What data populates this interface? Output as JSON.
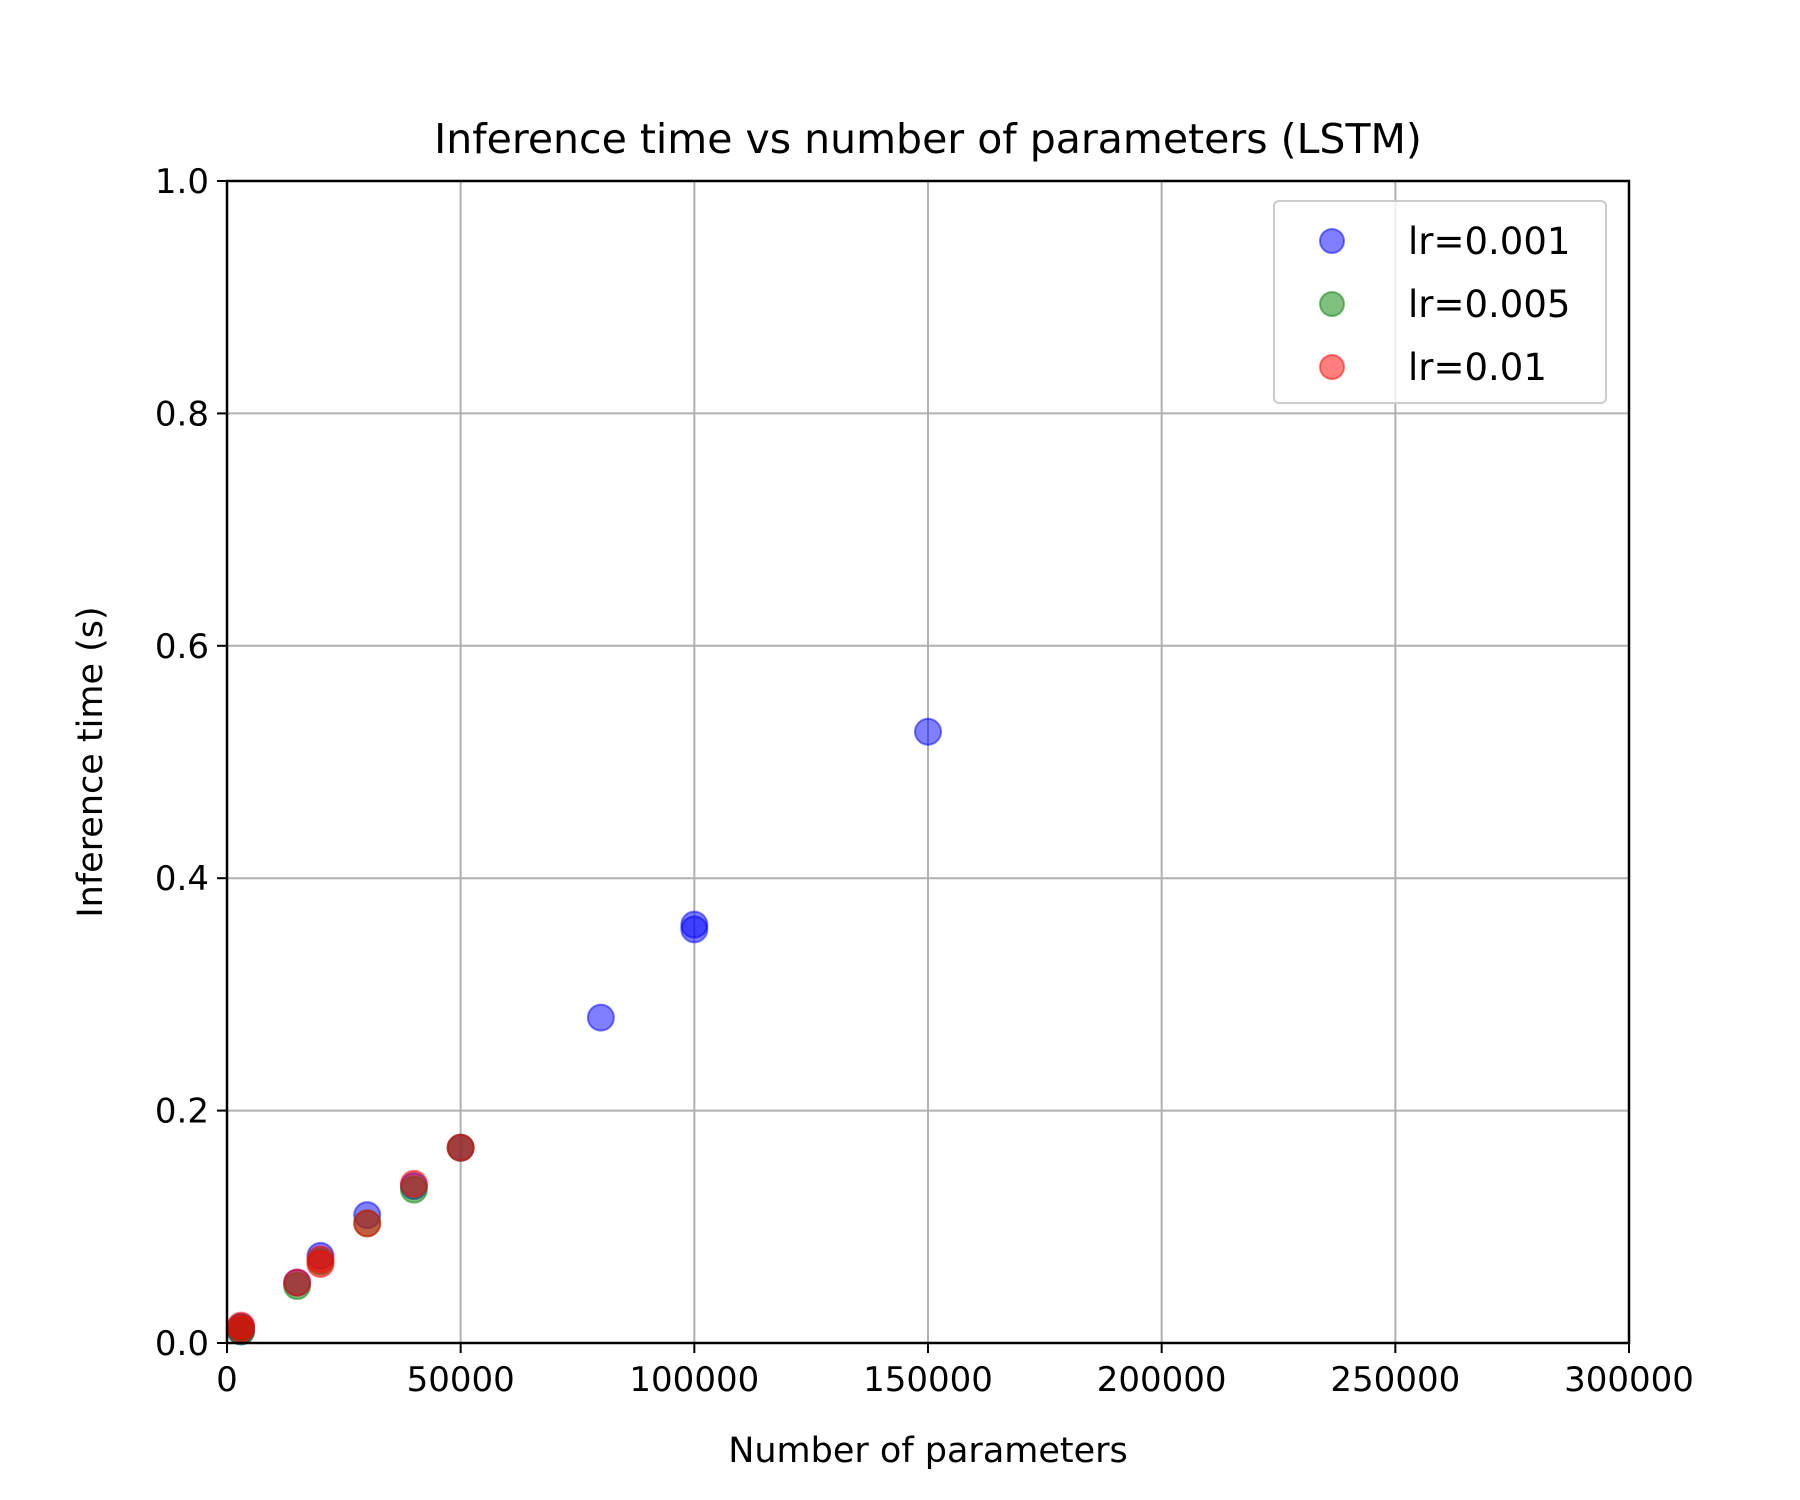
{
  "chart_data": {
    "type": "scatter",
    "title": "Inference time vs number of parameters (LSTM)",
    "xlabel": "Number of parameters",
    "ylabel": "Inference time (s)",
    "xlim": [
      0,
      300000
    ],
    "ylim": [
      0,
      1.0
    ],
    "xticks": [
      0,
      50000,
      100000,
      150000,
      200000,
      250000,
      300000
    ],
    "xtick_labels": [
      "0",
      "50000",
      "100000",
      "150000",
      "200000",
      "250000",
      "300000"
    ],
    "yticks": [
      0,
      0.2,
      0.4,
      0.6,
      0.8,
      1.0
    ],
    "ytick_labels": [
      "0.0",
      "0.2",
      "0.4",
      "0.6",
      "0.8",
      "1.0"
    ],
    "grid": true,
    "legend_position": "top-right",
    "marker_alpha": 0.5,
    "series": [
      {
        "name": "lr=0.001",
        "color": "#0000ff",
        "points": [
          [
            3000,
            0.01
          ],
          [
            3000,
            0.014
          ],
          [
            15000,
            0.052
          ],
          [
            20000,
            0.075
          ],
          [
            30000,
            0.11
          ],
          [
            40000,
            0.135
          ],
          [
            50000,
            0.168
          ],
          [
            80000,
            0.28
          ],
          [
            100000,
            0.356
          ],
          [
            100000,
            0.36
          ],
          [
            150000,
            0.526
          ]
        ]
      },
      {
        "name": "lr=0.005",
        "color": "#008000",
        "points": [
          [
            3000,
            0.01
          ],
          [
            3000,
            0.013
          ],
          [
            15000,
            0.049
          ],
          [
            20000,
            0.07
          ],
          [
            30000,
            0.103
          ],
          [
            40000,
            0.132
          ],
          [
            50000,
            0.168
          ]
        ]
      },
      {
        "name": "lr=0.01",
        "color": "#ff0000",
        "points": [
          [
            3000,
            0.012
          ],
          [
            3000,
            0.015
          ],
          [
            15000,
            0.052
          ],
          [
            20000,
            0.068
          ],
          [
            20000,
            0.072
          ],
          [
            30000,
            0.103
          ],
          [
            40000,
            0.137
          ],
          [
            50000,
            0.168
          ]
        ]
      }
    ]
  }
}
